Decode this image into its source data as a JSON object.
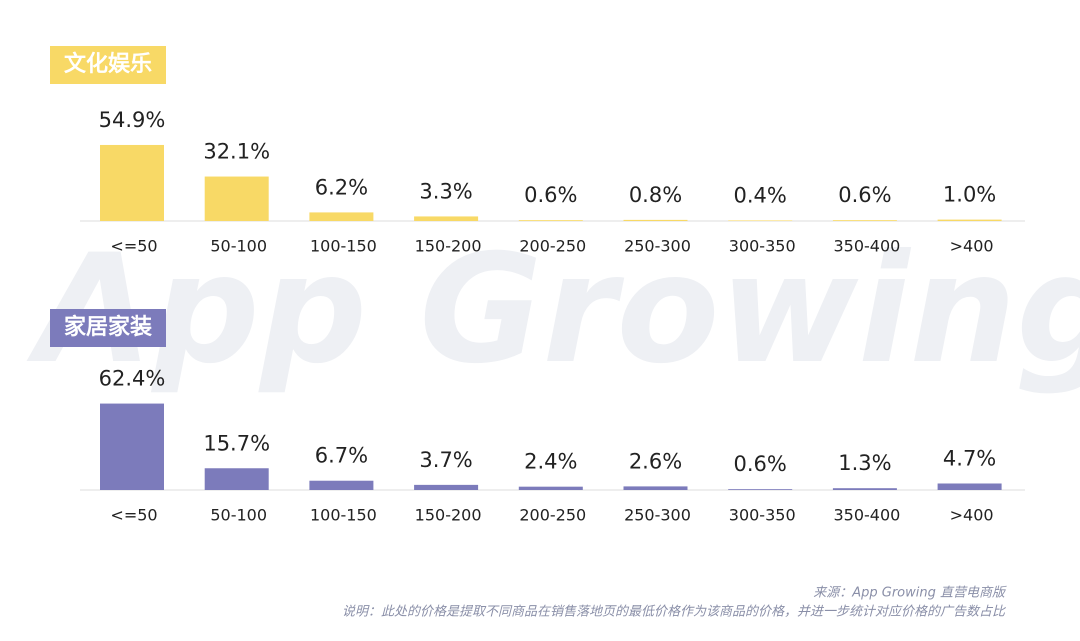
{
  "chart_data": [
    {
      "type": "bar",
      "title": "文化娱乐",
      "color": "#f8d966",
      "categories": [
        "<=50",
        "50-100",
        "100-150",
        "150-200",
        "200-250",
        "250-300",
        "300-350",
        "350-400",
        ">400"
      ],
      "values": [
        54.9,
        32.1,
        6.2,
        3.3,
        0.6,
        0.8,
        0.4,
        0.6,
        1.0
      ],
      "value_labels": [
        "54.9%",
        "32.1%",
        "6.2%",
        "3.3%",
        "0.6%",
        "0.8%",
        "0.4%",
        "0.6%",
        "1.0%"
      ]
    },
    {
      "type": "bar",
      "title": "家居家装",
      "color": "#7c7bbb",
      "categories": [
        "<=50",
        "50-100",
        "100-150",
        "150-200",
        "200-250",
        "250-300",
        "300-350",
        "350-400",
        ">400"
      ],
      "values": [
        62.4,
        15.7,
        6.7,
        3.7,
        2.4,
        2.6,
        0.6,
        1.3,
        4.7
      ],
      "value_labels": [
        "62.4%",
        "15.7%",
        "6.7%",
        "3.7%",
        "2.4%",
        "2.6%",
        "0.6%",
        "1.3%",
        "4.7%"
      ]
    }
  ],
  "watermark": "App Growing",
  "source": "来源：App Growing 直营电商版",
  "note": "说明：此处的价格是提取不同商品在销售落地页的最低价格作为该商品的价格，并进一步统计对应价格的广告数占比"
}
